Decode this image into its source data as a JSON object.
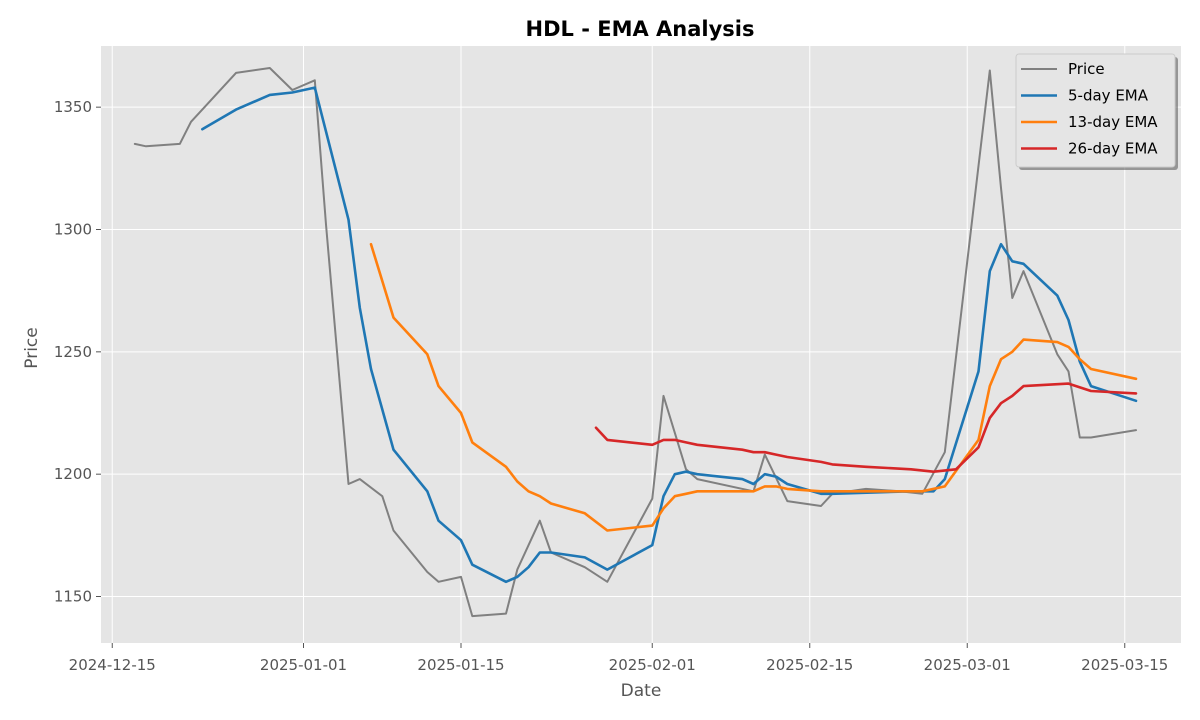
{
  "chart_data": {
    "type": "line",
    "title": "HDL - EMA Analysis",
    "xlabel": "Date",
    "ylabel": "Price",
    "x_ticks": [
      "2024-12-15",
      "2025-01-01",
      "2025-01-15",
      "2025-02-01",
      "2025-02-15",
      "2025-03-01",
      "2025-03-15"
    ],
    "y_ticks": [
      1150,
      1200,
      1250,
      1300,
      1350
    ],
    "xlim": [
      "2024-12-14",
      "2025-03-20"
    ],
    "ylim": [
      1131,
      1375
    ],
    "grid": true,
    "legend_position": "top-right",
    "colors": {
      "background": "#e5e5e5",
      "grid": "#ffffff",
      "price": "#808080",
      "ema5": "#1f77b4",
      "ema13": "#ff7f0e",
      "ema26": "#d62728"
    },
    "series": [
      {
        "name": "Price",
        "key": "price",
        "points": [
          [
            "2024-12-17",
            1335
          ],
          [
            "2024-12-18",
            1334
          ],
          [
            "2024-12-21",
            1335
          ],
          [
            "2024-12-22",
            1344
          ],
          [
            "2024-12-23",
            1349
          ],
          [
            "2024-12-26",
            1364
          ],
          [
            "2024-12-29",
            1366
          ],
          [
            "2024-12-31",
            1357
          ],
          [
            "2025-01-02",
            1361
          ],
          [
            "2025-01-03",
            1302
          ],
          [
            "2025-01-05",
            1196
          ],
          [
            "2025-01-06",
            1198
          ],
          [
            "2025-01-08",
            1191
          ],
          [
            "2025-01-09",
            1177
          ],
          [
            "2025-01-12",
            1160
          ],
          [
            "2025-01-13",
            1156
          ],
          [
            "2025-01-15",
            1158
          ],
          [
            "2025-01-16",
            1142
          ],
          [
            "2025-01-19",
            1143
          ],
          [
            "2025-01-20",
            1161
          ],
          [
            "2025-01-22",
            1181
          ],
          [
            "2025-01-23",
            1168
          ],
          [
            "2025-01-26",
            1162
          ],
          [
            "2025-01-28",
            1156
          ],
          [
            "2025-02-01",
            1190
          ],
          [
            "2025-02-02",
            1232
          ],
          [
            "2025-02-04",
            1202
          ],
          [
            "2025-02-05",
            1198
          ],
          [
            "2025-02-10",
            1193
          ],
          [
            "2025-02-11",
            1208
          ],
          [
            "2025-02-13",
            1189
          ],
          [
            "2025-02-16",
            1187
          ],
          [
            "2025-02-17",
            1192
          ],
          [
            "2025-02-20",
            1194
          ],
          [
            "2025-02-23",
            1193
          ],
          [
            "2025-02-25",
            1192
          ],
          [
            "2025-02-27",
            1209
          ],
          [
            "2025-03-02",
            1326
          ],
          [
            "2025-03-03",
            1365
          ],
          [
            "2025-03-04",
            1317
          ],
          [
            "2025-03-05",
            1272
          ],
          [
            "2025-03-06",
            1283
          ],
          [
            "2025-03-09",
            1249
          ],
          [
            "2025-03-10",
            1242
          ],
          [
            "2025-03-11",
            1215
          ],
          [
            "2025-03-12",
            1215
          ],
          [
            "2025-03-16",
            1218
          ]
        ]
      },
      {
        "name": "5-day EMA",
        "key": "ema5",
        "points": [
          [
            "2024-12-23",
            1341
          ],
          [
            "2024-12-26",
            1349
          ],
          [
            "2024-12-29",
            1355
          ],
          [
            "2024-12-31",
            1356
          ],
          [
            "2025-01-02",
            1358
          ],
          [
            "2025-01-05",
            1304
          ],
          [
            "2025-01-06",
            1268
          ],
          [
            "2025-01-07",
            1243
          ],
          [
            "2025-01-09",
            1210
          ],
          [
            "2025-01-12",
            1193
          ],
          [
            "2025-01-13",
            1181
          ],
          [
            "2025-01-15",
            1173
          ],
          [
            "2025-01-16",
            1163
          ],
          [
            "2025-01-19",
            1156
          ],
          [
            "2025-01-20",
            1158
          ],
          [
            "2025-01-21",
            1162
          ],
          [
            "2025-01-22",
            1168
          ],
          [
            "2025-01-23",
            1168
          ],
          [
            "2025-01-26",
            1166
          ],
          [
            "2025-01-28",
            1161
          ],
          [
            "2025-02-01",
            1171
          ],
          [
            "2025-02-02",
            1191
          ],
          [
            "2025-02-03",
            1200
          ],
          [
            "2025-02-04",
            1201
          ],
          [
            "2025-02-05",
            1200
          ],
          [
            "2025-02-09",
            1198
          ],
          [
            "2025-02-10",
            1196
          ],
          [
            "2025-02-11",
            1200
          ],
          [
            "2025-02-12",
            1199
          ],
          [
            "2025-02-13",
            1196
          ],
          [
            "2025-02-16",
            1192
          ],
          [
            "2025-02-17",
            1192
          ],
          [
            "2025-02-24",
            1193
          ],
          [
            "2025-02-26",
            1193
          ],
          [
            "2025-02-27",
            1198
          ],
          [
            "2025-03-02",
            1242
          ],
          [
            "2025-03-03",
            1283
          ],
          [
            "2025-03-04",
            1294
          ],
          [
            "2025-03-05",
            1287
          ],
          [
            "2025-03-06",
            1286
          ],
          [
            "2025-03-09",
            1273
          ],
          [
            "2025-03-10",
            1263
          ],
          [
            "2025-03-11",
            1246
          ],
          [
            "2025-03-12",
            1236
          ],
          [
            "2025-03-16",
            1230
          ]
        ]
      },
      {
        "name": "13-day EMA",
        "key": "ema13",
        "points": [
          [
            "2025-01-07",
            1294
          ],
          [
            "2025-01-09",
            1264
          ],
          [
            "2025-01-12",
            1249
          ],
          [
            "2025-01-13",
            1236
          ],
          [
            "2025-01-15",
            1225
          ],
          [
            "2025-01-16",
            1213
          ],
          [
            "2025-01-19",
            1203
          ],
          [
            "2025-01-20",
            1197
          ],
          [
            "2025-01-21",
            1193
          ],
          [
            "2025-01-22",
            1191
          ],
          [
            "2025-01-23",
            1188
          ],
          [
            "2025-01-26",
            1184
          ],
          [
            "2025-01-28",
            1177
          ],
          [
            "2025-02-01",
            1179
          ],
          [
            "2025-02-02",
            1186
          ],
          [
            "2025-02-03",
            1191
          ],
          [
            "2025-02-04",
            1192
          ],
          [
            "2025-02-05",
            1193
          ],
          [
            "2025-02-10",
            1193
          ],
          [
            "2025-02-11",
            1195
          ],
          [
            "2025-02-12",
            1195
          ],
          [
            "2025-02-13",
            1194
          ],
          [
            "2025-02-16",
            1193
          ],
          [
            "2025-02-20",
            1193
          ],
          [
            "2025-02-25",
            1193
          ],
          [
            "2025-02-27",
            1195
          ],
          [
            "2025-03-02",
            1214
          ],
          [
            "2025-03-03",
            1236
          ],
          [
            "2025-03-04",
            1247
          ],
          [
            "2025-03-05",
            1250
          ],
          [
            "2025-03-06",
            1255
          ],
          [
            "2025-03-09",
            1254
          ],
          [
            "2025-03-10",
            1252
          ],
          [
            "2025-03-11",
            1247
          ],
          [
            "2025-03-12",
            1243
          ],
          [
            "2025-03-16",
            1239
          ]
        ]
      },
      {
        "name": "26-day EMA",
        "key": "ema26",
        "points": [
          [
            "2025-01-27",
            1219
          ],
          [
            "2025-01-28",
            1214
          ],
          [
            "2025-02-01",
            1212
          ],
          [
            "2025-02-02",
            1214
          ],
          [
            "2025-02-03",
            1214
          ],
          [
            "2025-02-04",
            1213
          ],
          [
            "2025-02-05",
            1212
          ],
          [
            "2025-02-09",
            1210
          ],
          [
            "2025-02-10",
            1209
          ],
          [
            "2025-02-11",
            1209
          ],
          [
            "2025-02-12",
            1208
          ],
          [
            "2025-02-13",
            1207
          ],
          [
            "2025-02-16",
            1205
          ],
          [
            "2025-02-17",
            1204
          ],
          [
            "2025-02-20",
            1203
          ],
          [
            "2025-02-24",
            1202
          ],
          [
            "2025-02-26",
            1201
          ],
          [
            "2025-02-28",
            1202
          ],
          [
            "2025-03-02",
            1211
          ],
          [
            "2025-03-03",
            1223
          ],
          [
            "2025-03-04",
            1229
          ],
          [
            "2025-03-05",
            1232
          ],
          [
            "2025-03-06",
            1236
          ],
          [
            "2025-03-10",
            1237
          ],
          [
            "2025-03-12",
            1234
          ],
          [
            "2025-03-16",
            1233
          ]
        ]
      }
    ]
  }
}
